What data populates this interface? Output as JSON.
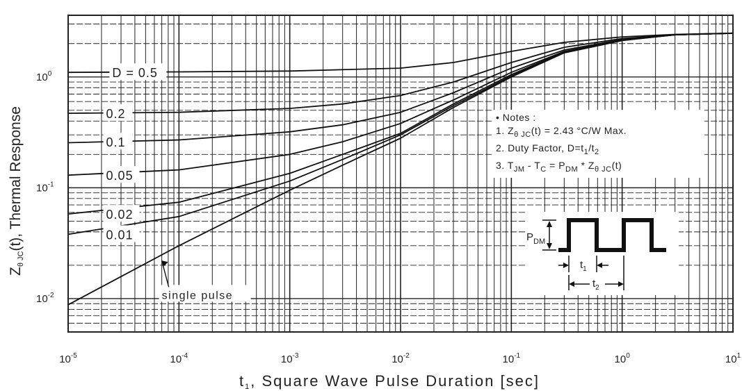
{
  "chart_data": {
    "type": "line",
    "xscale": "log",
    "yscale": "log",
    "xlim": [
      1e-05,
      10
    ],
    "ylim": [
      0.005,
      3.6
    ],
    "grid": true,
    "x_tick_labels": [
      {
        "value": 1e-05,
        "base": "10",
        "exp": "-5"
      },
      {
        "value": 0.0001,
        "base": "10",
        "exp": "-4"
      },
      {
        "value": 0.001,
        "base": "10",
        "exp": "-3"
      },
      {
        "value": 0.01,
        "base": "10",
        "exp": "-2"
      },
      {
        "value": 0.1,
        "base": "10",
        "exp": "-1"
      },
      {
        "value": 1,
        "base": "10",
        "exp": "0"
      },
      {
        "value": 10,
        "base": "10",
        "exp": "1"
      }
    ],
    "y_tick_labels": [
      {
        "value": 1,
        "base": "10",
        "exp": "0"
      },
      {
        "value": 0.1,
        "base": "10",
        "exp": "-1"
      },
      {
        "value": 0.01,
        "base": "10",
        "exp": "-2"
      }
    ],
    "series": [
      {
        "name": "D = 0.5",
        "label_x": 2.5e-05,
        "label_y": 1.1,
        "label_text": "D = 0.5",
        "points": [
          [
            1e-05,
            1.1
          ],
          [
            0.0001,
            1.11
          ],
          [
            0.001,
            1.13
          ],
          [
            0.01,
            1.2
          ],
          [
            0.03,
            1.35
          ],
          [
            0.1,
            1.7
          ],
          [
            0.3,
            2.05
          ],
          [
            1,
            2.3
          ],
          [
            3,
            2.42
          ],
          [
            10,
            2.48
          ]
        ]
      },
      {
        "name": "0.2",
        "label_x": 2.2e-05,
        "label_y": 0.47,
        "label_text": "0.2",
        "points": [
          [
            1e-05,
            0.47
          ],
          [
            0.0001,
            0.48
          ],
          [
            0.001,
            0.52
          ],
          [
            0.003,
            0.57
          ],
          [
            0.01,
            0.68
          ],
          [
            0.03,
            0.9
          ],
          [
            0.1,
            1.35
          ],
          [
            0.3,
            1.85
          ],
          [
            1,
            2.22
          ],
          [
            3,
            2.4
          ],
          [
            10,
            2.48
          ]
        ]
      },
      {
        "name": "0.1",
        "label_x": 2.2e-05,
        "label_y": 0.26,
        "label_text": "0.1",
        "points": [
          [
            1e-05,
            0.255
          ],
          [
            0.0001,
            0.27
          ],
          [
            0.001,
            0.32
          ],
          [
            0.003,
            0.37
          ],
          [
            0.01,
            0.48
          ],
          [
            0.03,
            0.72
          ],
          [
            0.1,
            1.2
          ],
          [
            0.3,
            1.75
          ],
          [
            1,
            2.18
          ],
          [
            3,
            2.4
          ],
          [
            10,
            2.48
          ]
        ]
      },
      {
        "name": "0.05",
        "label_x": 2.2e-05,
        "label_y": 0.13,
        "label_text": "0.05",
        "points": [
          [
            1e-05,
            0.13
          ],
          [
            0.0001,
            0.145
          ],
          [
            0.001,
            0.2
          ],
          [
            0.003,
            0.26
          ],
          [
            0.01,
            0.38
          ],
          [
            0.03,
            0.62
          ],
          [
            0.1,
            1.1
          ],
          [
            0.3,
            1.7
          ],
          [
            1,
            2.15
          ],
          [
            3,
            2.4
          ],
          [
            10,
            2.48
          ]
        ]
      },
      {
        "name": "0.02",
        "label_x": 2.2e-05,
        "label_y": 0.058,
        "label_text": "0.02",
        "points": [
          [
            1e-05,
            0.058
          ],
          [
            0.0001,
            0.074
          ],
          [
            0.001,
            0.135
          ],
          [
            0.003,
            0.2
          ],
          [
            0.01,
            0.31
          ],
          [
            0.03,
            0.57
          ],
          [
            0.1,
            1.05
          ],
          [
            0.3,
            1.68
          ],
          [
            1,
            2.15
          ],
          [
            3,
            2.4
          ],
          [
            10,
            2.48
          ]
        ]
      },
      {
        "name": "0.01",
        "label_x": 2.2e-05,
        "label_y": 0.038,
        "label_text": "0.01",
        "points": [
          [
            1e-05,
            0.038
          ],
          [
            0.0001,
            0.055
          ],
          [
            0.001,
            0.115
          ],
          [
            0.003,
            0.18
          ],
          [
            0.01,
            0.3
          ],
          [
            0.03,
            0.55
          ],
          [
            0.1,
            1.02
          ],
          [
            0.3,
            1.66
          ],
          [
            1,
            2.14
          ],
          [
            3,
            2.4
          ],
          [
            10,
            2.48
          ]
        ]
      },
      {
        "name": "single pulse",
        "label_x": 7e-05,
        "label_y": 0.011,
        "label_text": "single pulse",
        "arrow_to": [
          7e-05,
          0.022
        ],
        "points": [
          [
            1e-05,
            0.0088
          ],
          [
            0.0001,
            0.03
          ],
          [
            0.001,
            0.095
          ],
          [
            0.003,
            0.16
          ],
          [
            0.01,
            0.28
          ],
          [
            0.03,
            0.53
          ],
          [
            0.1,
            1.0
          ],
          [
            0.3,
            1.65
          ],
          [
            1,
            2.13
          ],
          [
            3,
            2.4
          ],
          [
            10,
            2.48
          ]
        ]
      }
    ]
  },
  "axes": {
    "xlabel_pre": "t",
    "xlabel_sub": "1",
    "xlabel_post": ", Square Wave Pulse Duration [sec]",
    "ylabel_pre": "Z",
    "ylabel_sub": "θ JC",
    "ylabel_post": "(t), Thermal Response"
  },
  "notes": {
    "title": "• Notes :",
    "line1_pre": "1. Z",
    "line1_sub": "θ JC",
    "line1_post": "(t) = 2.43 °C/W Max.",
    "line2_pre": "2. Duty Factor, D=t",
    "line2_sub1": "1",
    "line2_mid": "/t",
    "line2_sub2": "2",
    "line3_pre": "3. T",
    "line3_sub1": "JM",
    "line3_mid1": " - T",
    "line3_sub2": "C",
    "line3_mid2": " = P",
    "line3_sub3": "DM",
    "line3_mid3": " * Z",
    "line3_sub4": "θ JC",
    "line3_post": "(t)"
  },
  "pulse_diagram": {
    "pdm_main": "P",
    "pdm_sub": "DM",
    "t1_main": "t",
    "t1_sub": "1",
    "t2_main": "t",
    "t2_sub": "2"
  }
}
